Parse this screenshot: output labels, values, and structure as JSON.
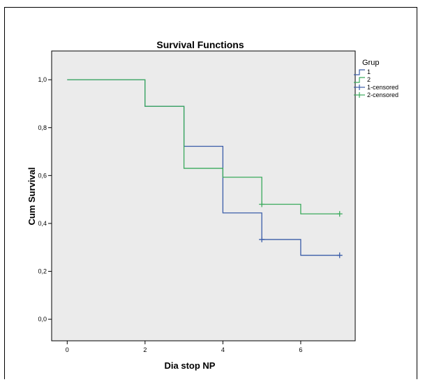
{
  "chart_data": {
    "type": "line",
    "step": true,
    "title": "Survival Functions",
    "xlabel": "Dia stop NP",
    "ylabel": "Cum Survival",
    "xlim": [
      -0.4,
      7.4
    ],
    "ylim": [
      -0.09,
      1.12
    ],
    "xticks": [
      0,
      2,
      4,
      6
    ],
    "xtick_labels": [
      "0",
      "2",
      "4",
      "6"
    ],
    "yticks": [
      0.0,
      0.2,
      0.4,
      0.6,
      0.8,
      1.0
    ],
    "ytick_labels": [
      "0,0",
      "0,2",
      "0,4",
      "0,6",
      "0,8",
      "1,0"
    ],
    "grid": false,
    "legend_title": "Grup",
    "legend_position": "right",
    "legend_labels": [
      "1",
      "2",
      "1-censored",
      "2-censored"
    ],
    "background": "#ebebeb",
    "series": [
      {
        "name": "1",
        "color": "#3a5ca8",
        "x": [
          0,
          2,
          3,
          4,
          5,
          6,
          7
        ],
        "y": [
          1.0,
          0.889,
          0.722,
          0.444,
          0.333,
          0.267,
          0.267
        ],
        "censored": [
          {
            "x": 5,
            "y": 0.333
          },
          {
            "x": 7,
            "y": 0.267
          }
        ]
      },
      {
        "name": "2",
        "color": "#3aaa5c",
        "x": [
          0,
          2,
          3,
          4,
          5,
          6,
          7
        ],
        "y": [
          1.0,
          0.889,
          0.63,
          0.593,
          0.48,
          0.44,
          0.44
        ],
        "censored": [
          {
            "x": 5,
            "y": 0.48
          },
          {
            "x": 7,
            "y": 0.44
          }
        ]
      }
    ]
  }
}
